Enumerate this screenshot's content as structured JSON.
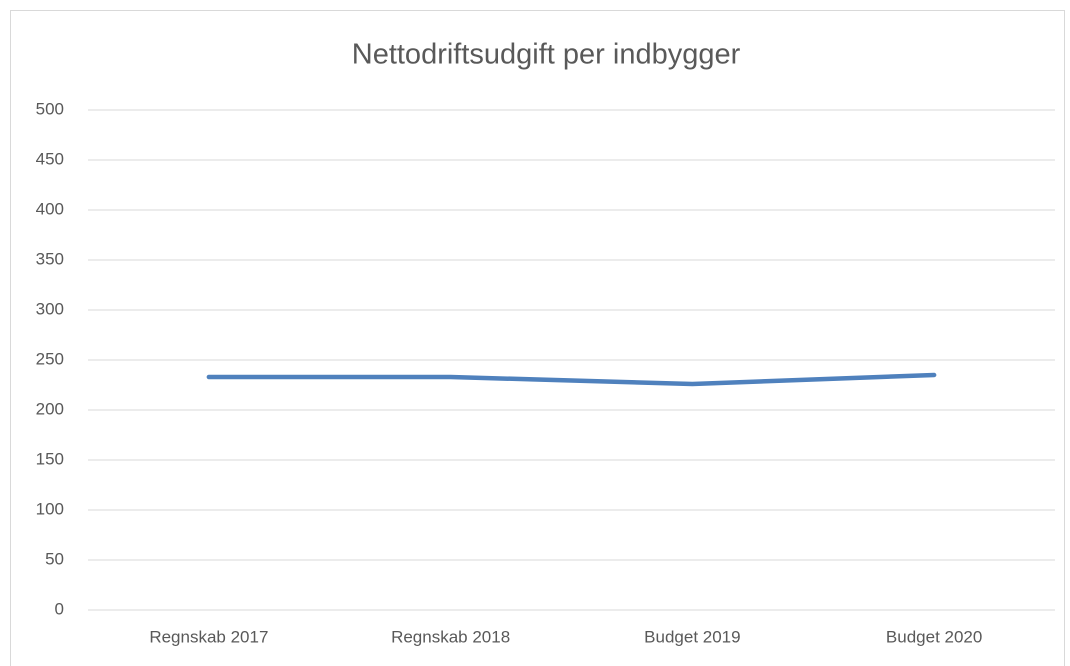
{
  "chart_data": {
    "type": "line",
    "title": "Nettodriftsudgift per indbygger",
    "categories": [
      "Regnskab 2017",
      "Regnskab 2018",
      "Budget 2019",
      "Budget 2020"
    ],
    "series": [
      {
        "name": null,
        "color": "#4f81bd",
        "values": [
          233,
          233,
          226,
          235
        ]
      }
    ],
    "ylim": [
      0,
      500
    ],
    "yticks": [
      0,
      50,
      100,
      150,
      200,
      250,
      300,
      350,
      400,
      450,
      500
    ],
    "grid": true
  }
}
